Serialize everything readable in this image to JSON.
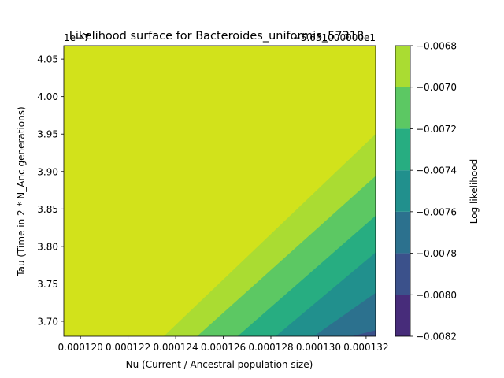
{
  "chart_data": {
    "type": "contourf",
    "title": "Likelihood surface for Bacteroides_uniformis_57318",
    "xlabel": "Nu (Current / Ancestral population size)",
    "ylabel": "Tau (Time in 2 * N_Anc generations)",
    "colorbar_label": "Log likelihood",
    "x_offset_text": "",
    "y_offset_text": "1e−7",
    "z_offset_text": "−5.631000000e1",
    "xlim": [
      0.0001193,
      0.0001324
    ],
    "ylim": [
      3.68e-07,
      4.068e-07
    ],
    "x_ticks": [
      0.00012,
      0.000122,
      0.000124,
      0.000126,
      0.000128,
      0.00013,
      0.000132
    ],
    "x_tick_labels": [
      "0.000120",
      "0.000122",
      "0.000124",
      "0.000126",
      "0.000128",
      "0.000130",
      "0.000132"
    ],
    "y_ticks": [
      3.7,
      3.75,
      3.8,
      3.85,
      3.9,
      3.95,
      4.0,
      4.05
    ],
    "y_tick_labels": [
      "3.70",
      "3.75",
      "3.80",
      "3.85",
      "3.90",
      "3.95",
      "4.00",
      "4.05"
    ],
    "levels": [
      -0.0082,
      -0.008,
      -0.0078,
      -0.0076,
      -0.0074,
      -0.0072,
      -0.007,
      -0.0068
    ],
    "level_labels": [
      "−0.0082",
      "−0.0080",
      "−0.0078",
      "−0.0076",
      "−0.0074",
      "−0.0072",
      "−0.0070",
      "−0.0068"
    ],
    "colors": [
      "#472c7a",
      "#3b518b",
      "#2c718e",
      "#21908d",
      "#27ad81",
      "#5cc863",
      "#aadc32",
      "#d2e21b"
    ],
    "boundaries": [
      {
        "level": -0.007,
        "points": [
          [
            0.0001235,
            3.68e-07
          ],
          [
            0.0001324,
            3.95e-07
          ]
        ]
      },
      {
        "level": -0.0072,
        "points": [
          [
            0.0001249,
            3.68e-07
          ],
          [
            0.0001324,
            3.894e-07
          ]
        ]
      },
      {
        "level": -0.0074,
        "points": [
          [
            0.0001266,
            3.68e-07
          ],
          [
            0.0001324,
            3.841e-07
          ]
        ]
      },
      {
        "level": -0.0076,
        "points": [
          [
            0.0001282,
            3.68e-07
          ],
          [
            0.0001324,
            3.792e-07
          ]
        ]
      },
      {
        "level": -0.0078,
        "points": [
          [
            0.0001298,
            3.68e-07
          ],
          [
            0.0001324,
            3.738e-07
          ]
        ]
      },
      {
        "level": -0.008,
        "points": [
          [
            0.0001314,
            3.68e-07
          ],
          [
            0.0001324,
            3.688e-07
          ]
        ]
      }
    ],
    "grid": false,
    "colorbar_position": "right"
  }
}
